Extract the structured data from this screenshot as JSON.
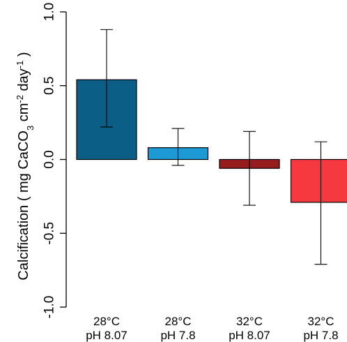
{
  "chart_data": {
    "type": "bar",
    "categories": [
      {
        "line1": "28°C",
        "line2": "pH 8.07"
      },
      {
        "line1": "28°C",
        "line2": "pH 7.8"
      },
      {
        "line1": "32°C",
        "line2": "pH 8.07"
      },
      {
        "line1": "32°C",
        "line2": "pH 7.8"
      }
    ],
    "values": [
      0.54,
      0.08,
      -0.06,
      -0.29
    ],
    "error_low": [
      0.22,
      -0.04,
      -0.31,
      -0.71
    ],
    "error_high": [
      0.88,
      0.21,
      0.19,
      0.12
    ],
    "colors": [
      "#0b5f86",
      "#1c9ad6",
      "#961c1e",
      "#f5393e"
    ],
    "ylabel": {
      "prefix": "Calcification ( mg CaCO",
      "sub3": "3",
      "mid": " cm",
      "sup_m2": "-2",
      "day": " day",
      "sup_m1": "-1",
      "suffix": " )"
    },
    "ylim": [
      -1.0,
      1.0
    ],
    "yticks": [
      "1.0",
      "0.5",
      "0.0",
      "-0.5",
      "-1.0"
    ],
    "ytick_values": [
      1.0,
      0.5,
      0.0,
      -0.5,
      -1.0
    ],
    "grid": false,
    "legend": "none"
  }
}
